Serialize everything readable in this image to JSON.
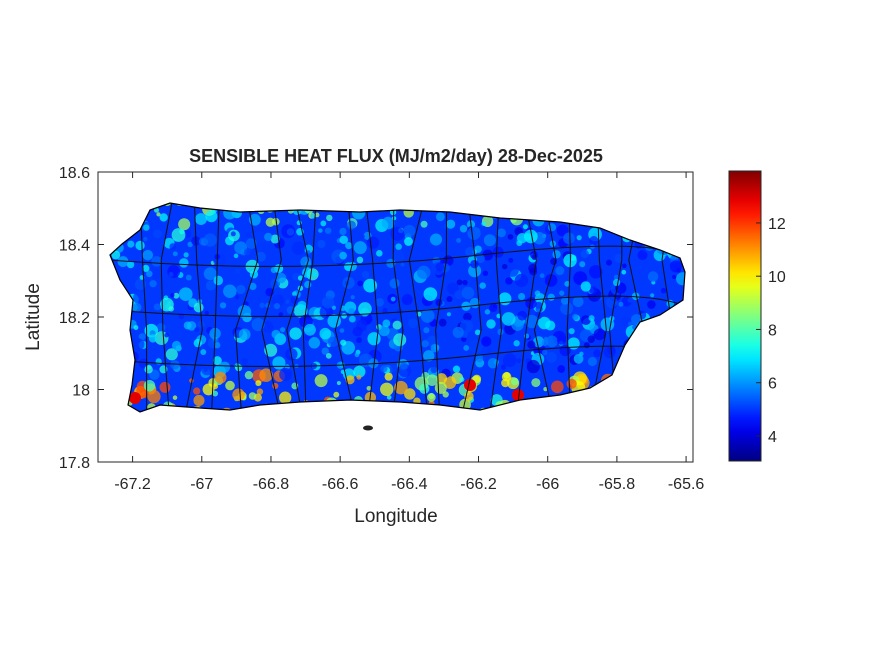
{
  "chart_data": {
    "type": "map",
    "title": "SENSIBLE HEAT FLUX (MJ/m2/day) 28-Dec-2025",
    "x_label": "Longitude",
    "y_label": "Latitude",
    "xlim": [
      -67.3,
      -65.58
    ],
    "xticks": [
      -67.2,
      -67,
      -66.8,
      -66.6,
      -66.4,
      -66.2,
      -66,
      -65.8,
      -65.6
    ],
    "ylim": [
      17.8,
      18.6
    ],
    "yticks": [
      17.8,
      18,
      18.2,
      18.4,
      18.6
    ],
    "colormap": "jet",
    "clim": [
      3.06,
      13.95
    ],
    "cticks": [
      4,
      6,
      8,
      10,
      12
    ]
  }
}
